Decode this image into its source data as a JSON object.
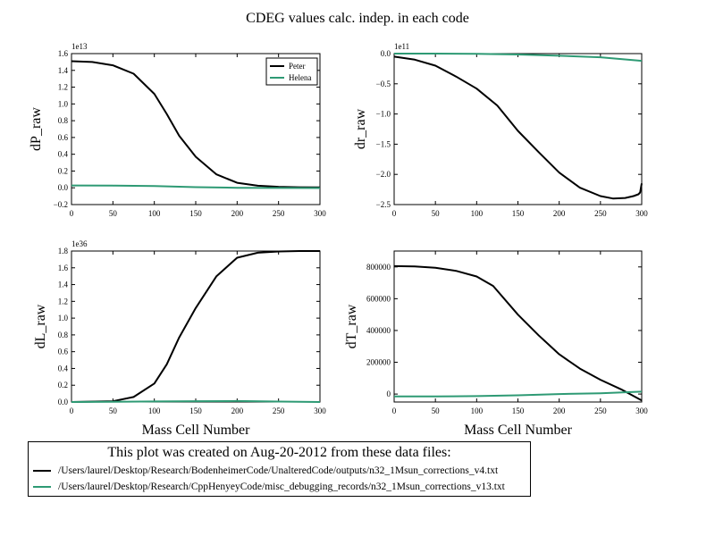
{
  "figure_title": "CDEG values calc. indep. in each code",
  "note": {
    "title": "This plot was created on Aug-20-2012 from these data files:",
    "files": [
      {
        "color": "#000000",
        "path": "/Users/laurel/Desktop/Research/BodenheimerCode/UnalteredCode/outputs/n32_1Msun_corrections_v4.txt"
      },
      {
        "color": "#2e9a74",
        "path": "/Users/laurel/Desktop/Research/CppHenyeyCode/misc_debugging_records/n32_1Msun_corrections_v13.txt"
      }
    ]
  },
  "colors": {
    "peter": "#000000",
    "helena": "#2e9a74"
  },
  "chart_data": [
    {
      "type": "line",
      "ylabel": "dP_raw",
      "xlabel": "",
      "exponent": "1e13",
      "xlim": [
        0,
        300
      ],
      "ylim": [
        -0.2,
        1.6
      ],
      "xticks": [
        0,
        50,
        100,
        150,
        200,
        250,
        300
      ],
      "yticks": [
        -0.2,
        0.0,
        0.2,
        0.4,
        0.6,
        0.8,
        1.0,
        1.2,
        1.4,
        1.6
      ],
      "ytick_labels": [
        "−0.2",
        "0.0",
        "0.2",
        "0.4",
        "0.6",
        "0.8",
        "1.0",
        "1.2",
        "1.4",
        "1.6"
      ],
      "legend": {
        "placement": "top-right",
        "entries": [
          "Peter",
          "Helena"
        ]
      },
      "series": [
        {
          "name": "Peter",
          "color": "#000000",
          "x": [
            0,
            25,
            50,
            75,
            100,
            115,
            130,
            150,
            175,
            200,
            225,
            250,
            275,
            300
          ],
          "y": [
            1.51,
            1.5,
            1.46,
            1.36,
            1.12,
            0.88,
            0.62,
            0.37,
            0.16,
            0.06,
            0.025,
            0.012,
            0.007,
            0.005
          ]
        },
        {
          "name": "Helena",
          "color": "#2e9a74",
          "x": [
            0,
            50,
            100,
            150,
            200,
            250,
            300
          ],
          "y": [
            0.028,
            0.026,
            0.02,
            0.008,
            0.0,
            -0.002,
            -0.003
          ]
        }
      ]
    },
    {
      "type": "line",
      "ylabel": "dr_raw",
      "xlabel": "",
      "exponent": "1e11",
      "xlim": [
        0,
        300
      ],
      "ylim": [
        -2.5,
        0.0
      ],
      "xticks": [
        0,
        50,
        100,
        150,
        200,
        250,
        300
      ],
      "yticks": [
        -2.5,
        -2.0,
        -1.5,
        -1.0,
        -0.5,
        0.0
      ],
      "ytick_labels": [
        "−2.5",
        "−2.0",
        "−1.5",
        "−1.0",
        "−0.5",
        "0.0"
      ],
      "series": [
        {
          "name": "",
          "color": "#000000",
          "x": [
            0,
            25,
            50,
            75,
            100,
            125,
            150,
            175,
            200,
            225,
            250,
            265,
            280,
            290,
            296,
            298,
            300
          ],
          "y": [
            -0.05,
            -0.1,
            -0.2,
            -0.38,
            -0.58,
            -0.86,
            -1.28,
            -1.63,
            -1.97,
            -2.22,
            -2.36,
            -2.4,
            -2.39,
            -2.36,
            -2.33,
            -2.3,
            -2.15
          ]
        },
        {
          "name": "",
          "color": "#2e9a74",
          "x": [
            0,
            50,
            100,
            150,
            200,
            250,
            300
          ],
          "y": [
            0.0,
            0.0,
            -0.005,
            -0.015,
            -0.035,
            -0.06,
            -0.12
          ]
        }
      ]
    },
    {
      "type": "line",
      "ylabel": "dL_raw",
      "xlabel": "Mass Cell Number",
      "exponent": "1e36",
      "xlim": [
        0,
        300
      ],
      "ylim": [
        0.0,
        1.8
      ],
      "xticks": [
        0,
        50,
        100,
        150,
        200,
        250,
        300
      ],
      "yticks": [
        0.0,
        0.2,
        0.4,
        0.6,
        0.8,
        1.0,
        1.2,
        1.4,
        1.6,
        1.8
      ],
      "ytick_labels": [
        "0.0",
        "0.2",
        "0.4",
        "0.6",
        "0.8",
        "1.0",
        "1.2",
        "1.4",
        "1.6",
        "1.8"
      ],
      "series": [
        {
          "name": "",
          "color": "#000000",
          "x": [
            0,
            50,
            75,
            100,
            115,
            130,
            150,
            175,
            200,
            225,
            250,
            275,
            300
          ],
          "y": [
            0.0,
            0.01,
            0.06,
            0.22,
            0.45,
            0.77,
            1.12,
            1.5,
            1.72,
            1.78,
            1.795,
            1.8,
            1.8
          ]
        },
        {
          "name": "",
          "color": "#2e9a74",
          "x": [
            0,
            50,
            100,
            150,
            200,
            250,
            300
          ],
          "y": [
            0.0,
            0.002,
            0.006,
            0.01,
            0.012,
            0.005,
            0.0
          ]
        }
      ]
    },
    {
      "type": "line",
      "ylabel": "dT_raw",
      "xlabel": "Mass Cell Number",
      "exponent": "",
      "xlim": [
        0,
        300
      ],
      "ylim": [
        -50000,
        900000
      ],
      "xticks": [
        0,
        50,
        100,
        150,
        200,
        250,
        300
      ],
      "yticks": [
        0,
        200000,
        400000,
        600000,
        800000
      ],
      "ytick_labels": [
        "0",
        "200000",
        "400000",
        "600000",
        "800000"
      ],
      "series": [
        {
          "name": "",
          "color": "#000000",
          "x": [
            0,
            25,
            50,
            75,
            100,
            120,
            150,
            175,
            200,
            225,
            250,
            275,
            300
          ],
          "y": [
            805000,
            803000,
            795000,
            775000,
            740000,
            680000,
            500000,
            370000,
            250000,
            160000,
            90000,
            30000,
            -40000
          ]
        },
        {
          "name": "",
          "color": "#2e9a74",
          "x": [
            0,
            50,
            100,
            150,
            200,
            250,
            300
          ],
          "y": [
            -15000,
            -15000,
            -13000,
            -8000,
            0,
            5000,
            15000
          ]
        }
      ]
    }
  ]
}
